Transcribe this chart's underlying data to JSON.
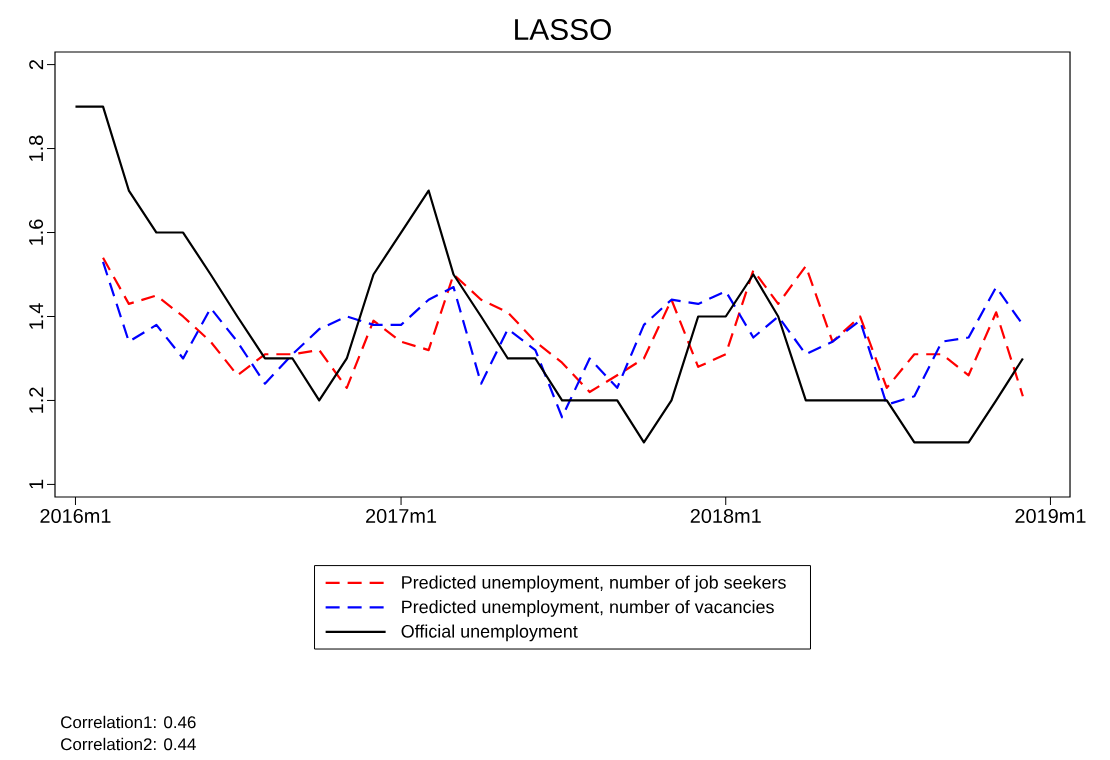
{
  "chart_data": {
    "type": "line",
    "title": "LASSO",
    "x": [
      "2016-01",
      "2016-02",
      "2016-03",
      "2016-04",
      "2016-05",
      "2016-06",
      "2016-07",
      "2016-08",
      "2016-09",
      "2016-10",
      "2016-11",
      "2016-12",
      "2017-01",
      "2017-02",
      "2017-03",
      "2017-04",
      "2017-05",
      "2017-06",
      "2017-07",
      "2017-08",
      "2017-09",
      "2017-10",
      "2017-11",
      "2017-12",
      "2018-01",
      "2018-02",
      "2018-03",
      "2018-04",
      "2018-05",
      "2018-06",
      "2018-07",
      "2018-08",
      "2018-09",
      "2018-10",
      "2018-11",
      "2018-12"
    ],
    "series": [
      {
        "name": "Predicted unemployment, number of job seekers",
        "color": "#ff0000",
        "line_style": "dashed",
        "values": [
          null,
          1.54,
          1.43,
          1.45,
          1.4,
          1.34,
          1.26,
          1.31,
          1.31,
          1.32,
          1.23,
          1.39,
          1.34,
          1.32,
          1.5,
          1.44,
          1.41,
          1.34,
          1.29,
          1.22,
          1.26,
          1.3,
          1.44,
          1.28,
          1.31,
          1.51,
          1.43,
          1.52,
          1.34,
          1.4,
          1.23,
          1.31,
          1.31,
          1.26,
          1.41,
          1.21
        ]
      },
      {
        "name": "Predicted unemployment, number of vacancies",
        "color": "#0000ff",
        "line_style": "dashed",
        "values": [
          null,
          1.53,
          1.34,
          1.38,
          1.3,
          1.42,
          1.34,
          1.24,
          1.31,
          1.37,
          1.4,
          1.38,
          1.38,
          1.44,
          1.47,
          1.24,
          1.37,
          1.32,
          1.16,
          1.3,
          1.23,
          1.38,
          1.44,
          1.43,
          1.46,
          1.35,
          1.4,
          1.31,
          1.34,
          1.39,
          1.19,
          1.21,
          1.34,
          1.35,
          1.47,
          1.38
        ]
      },
      {
        "name": "Official unemployment",
        "color": "#000000",
        "line_style": "solid",
        "values": [
          1.9,
          1.9,
          1.7,
          1.6,
          1.6,
          1.5,
          1.4,
          1.3,
          1.3,
          1.2,
          1.3,
          1.5,
          1.6,
          1.7,
          1.5,
          1.4,
          1.3,
          1.3,
          1.2,
          1.2,
          1.2,
          1.1,
          1.2,
          1.4,
          1.4,
          1.5,
          1.4,
          1.2,
          1.2,
          1.2,
          1.2,
          1.1,
          1.1,
          1.1,
          1.2,
          1.3
        ]
      }
    ],
    "xlim": [
      "2015-12-09",
      "2019-01-23"
    ],
    "xticks": [
      {
        "value": "2016-01",
        "label": "2016m1"
      },
      {
        "value": "2017-01",
        "label": "2017m1"
      },
      {
        "value": "2018-01",
        "label": "2018m1"
      },
      {
        "value": "2019-01",
        "label": "2019m1"
      }
    ],
    "ylim": [
      0.97,
      2.03
    ],
    "yticks": [
      1,
      1.2,
      1.4,
      1.6,
      1.8,
      2
    ],
    "grid": false,
    "legend": "bottom",
    "annotations": [
      "Correlation1: 0.46",
      "Correlation2: 0.44"
    ]
  }
}
